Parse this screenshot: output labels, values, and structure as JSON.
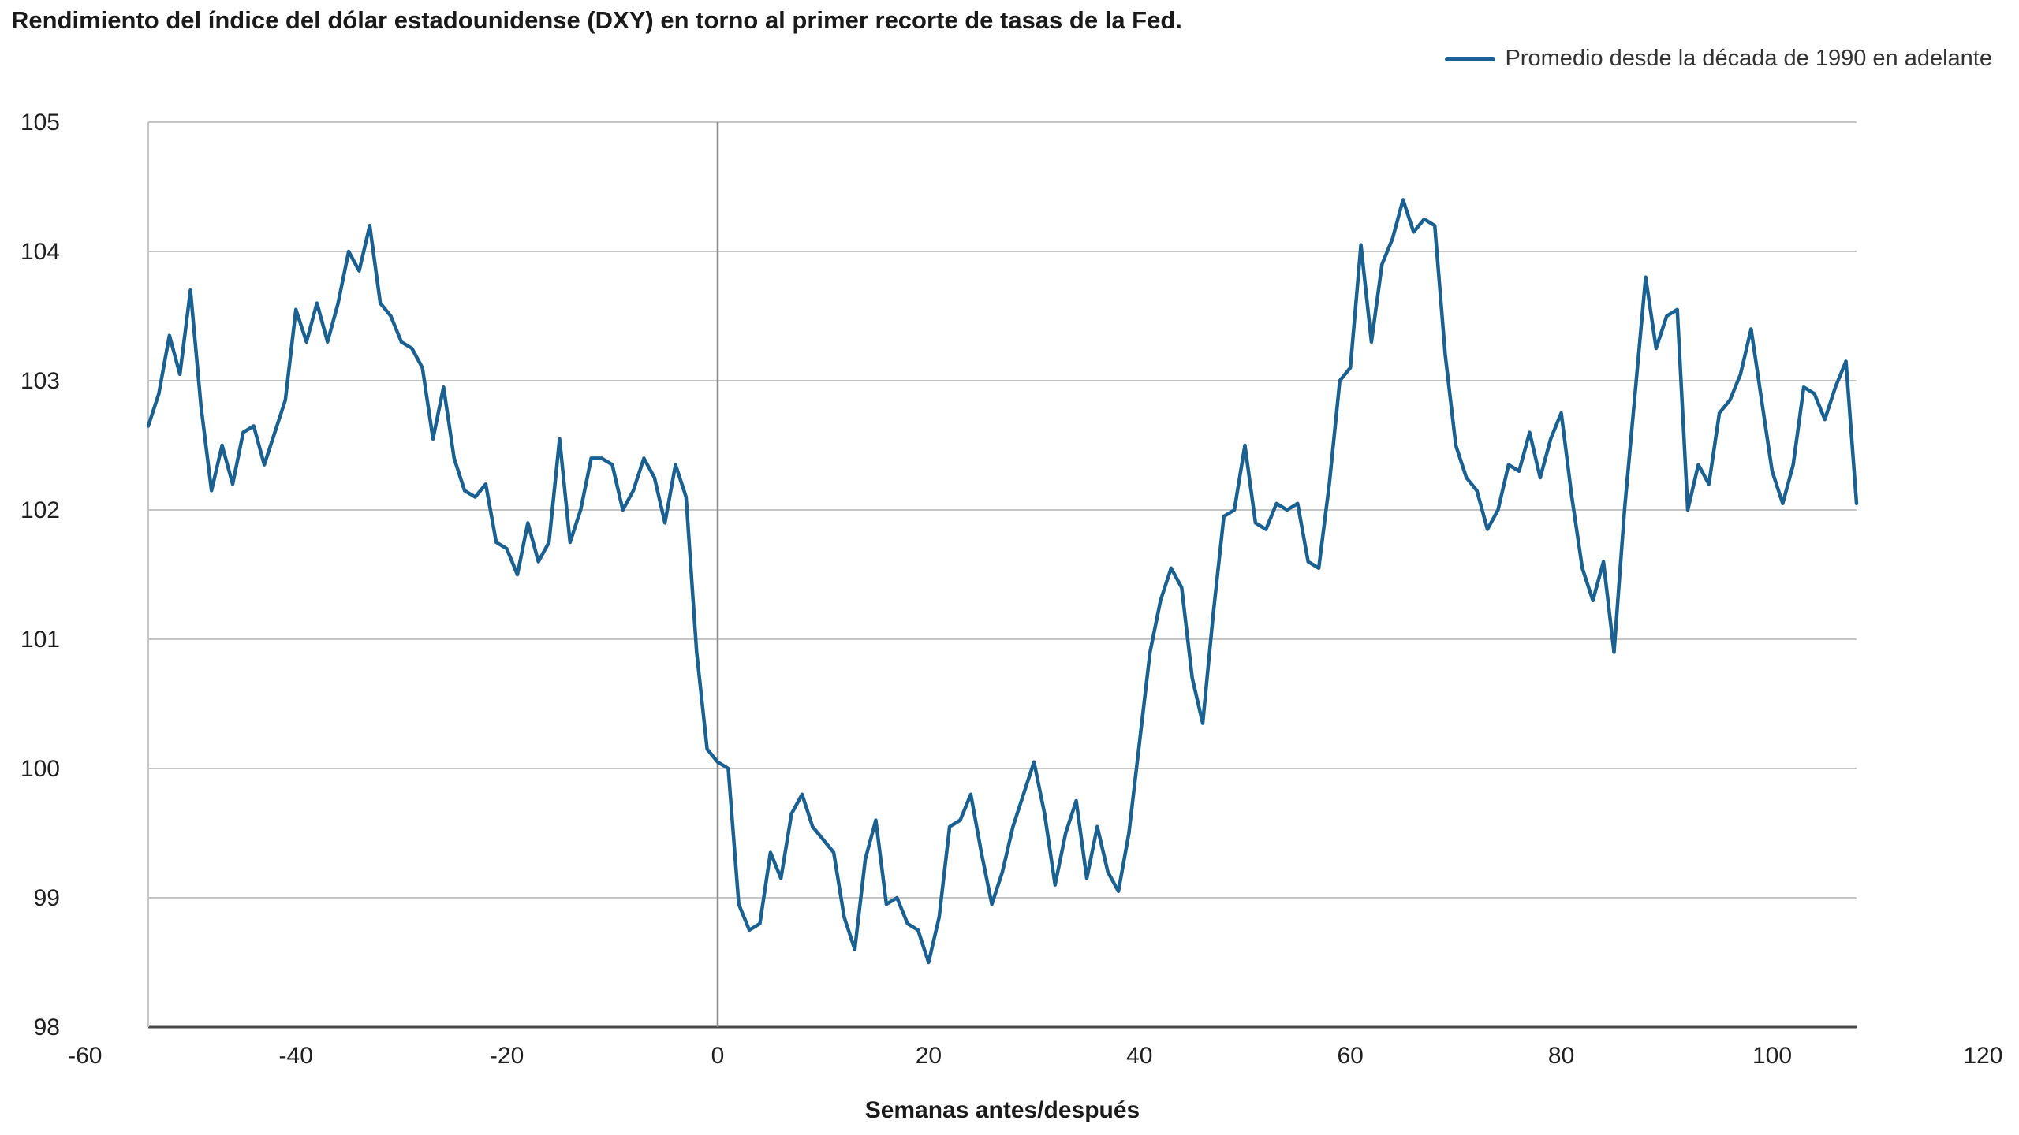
{
  "title": "Rendimiento del índice del dólar estadounidense (DXY) en torno al primer recorte de tasas de la Fed.",
  "legend": {
    "label": "Promedio desde la década de 1990 en adelante"
  },
  "colors": {
    "line": "#1a6090",
    "grid": "#c6c6c6",
    "axis": "#4a4a4a",
    "zero_line": "#8a8a8a",
    "text": "#1f1f1f"
  },
  "chart_data": {
    "type": "line",
    "title": "Rendimiento del índice del dólar estadounidense (DXY) en torno al primer recorte de tasas de la Fed.",
    "xlabel": "Semanas antes/después",
    "ylabel": "",
    "xlim": [
      -60,
      120
    ],
    "ylim": [
      98,
      105
    ],
    "x_ticks": [
      -60,
      -40,
      -20,
      0,
      20,
      40,
      60,
      80,
      100,
      120
    ],
    "y_ticks": [
      98,
      99,
      100,
      101,
      102,
      103,
      104,
      105
    ],
    "grid": "horizontal",
    "legend_position": "top-right",
    "annotations": [
      "vertical reference line at week 0"
    ],
    "series": [
      {
        "name": "Promedio desde la década de 1990 en adelante",
        "x": [
          -54,
          -53,
          -52,
          -51,
          -50,
          -49,
          -48,
          -47,
          -46,
          -45,
          -44,
          -43,
          -42,
          -41,
          -40,
          -39,
          -38,
          -37,
          -36,
          -35,
          -34,
          -33,
          -32,
          -31,
          -30,
          -29,
          -28,
          -27,
          -26,
          -25,
          -24,
          -23,
          -22,
          -21,
          -20,
          -19,
          -18,
          -17,
          -16,
          -15,
          -14,
          -13,
          -12,
          -11,
          -10,
          -9,
          -8,
          -7,
          -6,
          -5,
          -4,
          -3,
          -2,
          -1,
          0,
          1,
          2,
          3,
          4,
          5,
          6,
          7,
          8,
          9,
          10,
          11,
          12,
          13,
          14,
          15,
          16,
          17,
          18,
          19,
          20,
          21,
          22,
          23,
          24,
          25,
          26,
          27,
          28,
          29,
          30,
          31,
          32,
          33,
          34,
          35,
          36,
          37,
          38,
          39,
          40,
          41,
          42,
          43,
          44,
          45,
          46,
          47,
          48,
          49,
          50,
          51,
          52,
          53,
          54,
          55,
          56,
          57,
          58,
          59,
          60,
          61,
          62,
          63,
          64,
          65,
          66,
          67,
          68,
          69,
          70,
          71,
          72,
          73,
          74,
          75,
          76,
          77,
          78,
          79,
          80,
          81,
          82,
          83,
          84,
          85,
          86,
          87,
          88,
          89,
          90,
          91,
          92,
          93,
          94,
          95,
          96,
          97,
          98,
          99,
          100,
          101,
          102,
          103,
          104,
          105,
          106,
          107,
          108
        ],
        "y": [
          102.65,
          102.9,
          103.35,
          103.05,
          103.7,
          102.8,
          102.15,
          102.5,
          102.2,
          102.6,
          102.65,
          102.35,
          102.6,
          102.85,
          103.55,
          103.3,
          103.6,
          103.3,
          103.6,
          104.0,
          103.85,
          104.2,
          103.6,
          103.5,
          103.3,
          103.25,
          103.1,
          102.55,
          102.95,
          102.4,
          102.15,
          102.1,
          102.2,
          101.75,
          101.7,
          101.5,
          101.9,
          101.6,
          101.75,
          102.55,
          101.75,
          102.0,
          102.4,
          102.4,
          102.35,
          102.0,
          102.15,
          102.4,
          102.25,
          101.9,
          102.35,
          102.1,
          100.9,
          100.15,
          100.05,
          100.0,
          98.95,
          98.75,
          98.8,
          99.35,
          99.15,
          99.65,
          99.8,
          99.55,
          99.45,
          99.35,
          98.85,
          98.6,
          99.3,
          99.6,
          98.95,
          99.0,
          98.8,
          98.75,
          98.5,
          98.85,
          99.55,
          99.6,
          99.8,
          99.35,
          98.95,
          99.2,
          99.55,
          99.8,
          100.05,
          99.65,
          99.1,
          99.5,
          99.75,
          99.15,
          99.55,
          99.2,
          99.05,
          99.5,
          100.2,
          100.9,
          101.3,
          101.55,
          101.4,
          100.7,
          100.35,
          101.2,
          101.95,
          102.0,
          102.5,
          101.9,
          101.85,
          102.05,
          102.0,
          102.05,
          101.6,
          101.55,
          102.2,
          103.0,
          103.1,
          104.05,
          103.3,
          103.9,
          104.1,
          104.4,
          104.15,
          104.25,
          104.2,
          103.2,
          102.5,
          102.25,
          102.15,
          101.85,
          102.0,
          102.35,
          102.3,
          102.6,
          102.25,
          102.55,
          102.75,
          102.1,
          101.55,
          101.3,
          101.6,
          100.9,
          102.0,
          102.9,
          103.8,
          103.25,
          103.5,
          103.55,
          102.0,
          102.35,
          102.2,
          102.75,
          102.85,
          103.05,
          103.4,
          102.85,
          102.3,
          102.05,
          102.35,
          102.95,
          102.9,
          102.7,
          102.95,
          103.15,
          102.05
        ]
      }
    ]
  }
}
